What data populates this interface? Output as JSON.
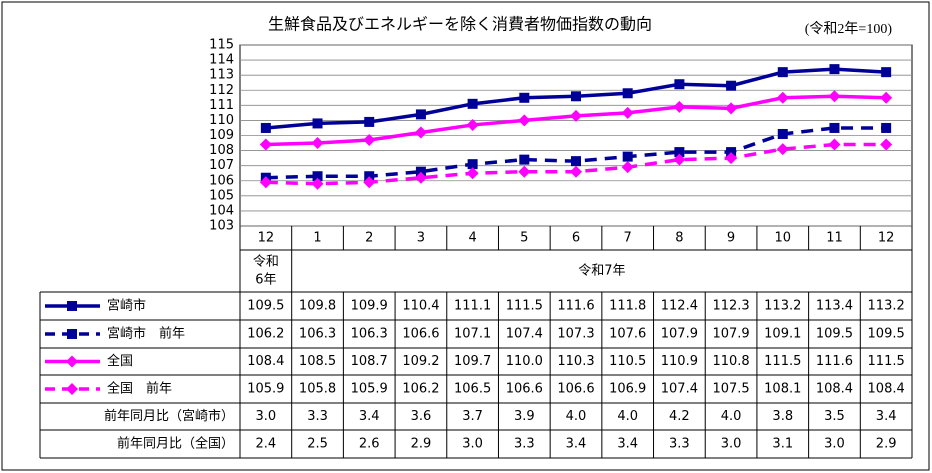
{
  "chart_data": {
    "type": "line",
    "title": "生鮮食品及びエネルギーを除く消費者物価指数の動向",
    "subtitle": "(令和2年=100)",
    "categories": [
      "12",
      "1",
      "2",
      "3",
      "4",
      "5",
      "6",
      "7",
      "8",
      "9",
      "10",
      "11",
      "12"
    ],
    "era_labels": [
      [
        "令和",
        "6年"
      ],
      [
        "令和7年"
      ]
    ],
    "ylim": [
      103,
      115
    ],
    "yticks": [
      103,
      104,
      105,
      106,
      107,
      108,
      109,
      110,
      111,
      112,
      113,
      114,
      115
    ],
    "grid": true,
    "series": [
      {
        "name": "宮崎市",
        "color": "#000099",
        "dashed": false,
        "marker": "square",
        "values": [
          109.5,
          109.8,
          109.9,
          110.4,
          111.1,
          111.5,
          111.6,
          111.8,
          112.4,
          112.3,
          113.2,
          113.4,
          113.2
        ],
        "value_labels": [
          "109.5",
          "109.8",
          "109.9",
          "110.4",
          "111.1",
          "111.5",
          "111.6",
          "111.8",
          "112.4",
          "112.3",
          "113.2",
          "113.4",
          "113.2"
        ]
      },
      {
        "name": "宮崎市　前年",
        "color": "#000099",
        "dashed": true,
        "marker": "square",
        "values": [
          106.2,
          106.3,
          106.3,
          106.6,
          107.1,
          107.4,
          107.3,
          107.6,
          107.9,
          107.9,
          109.1,
          109.5,
          109.5
        ],
        "value_labels": [
          "106.2",
          "106.3",
          "106.3",
          "106.6",
          "107.1",
          "107.4",
          "107.3",
          "107.6",
          "107.9",
          "107.9",
          "109.1",
          "109.5",
          "109.5"
        ]
      },
      {
        "name": "全国",
        "color": "#FF00FF",
        "dashed": false,
        "marker": "diamond",
        "values": [
          108.4,
          108.5,
          108.7,
          109.2,
          109.7,
          110.0,
          110.3,
          110.5,
          110.9,
          110.8,
          111.5,
          111.6,
          111.5
        ],
        "value_labels": [
          "108.4",
          "108.5",
          "108.7",
          "109.2",
          "109.7",
          "110.0",
          "110.3",
          "110.5",
          "110.9",
          "110.8",
          "111.5",
          "111.6",
          "111.5"
        ]
      },
      {
        "name": "全国　前年",
        "color": "#FF00FF",
        "dashed": true,
        "marker": "diamond",
        "values": [
          105.9,
          105.8,
          105.9,
          106.2,
          106.5,
          106.6,
          106.6,
          106.9,
          107.4,
          107.5,
          108.1,
          108.4,
          108.4
        ],
        "value_labels": [
          "105.9",
          "105.8",
          "105.9",
          "106.2",
          "106.5",
          "106.6",
          "106.6",
          "106.9",
          "107.4",
          "107.5",
          "108.1",
          "108.4",
          "108.4"
        ]
      }
    ],
    "table_rows": [
      {
        "name": "前年同月比（宮崎市）",
        "values": [
          3.0,
          3.3,
          3.4,
          3.6,
          3.7,
          3.9,
          4.0,
          4.0,
          4.2,
          4.0,
          3.8,
          3.5,
          3.4
        ],
        "value_labels": [
          "3.0",
          "3.3",
          "3.4",
          "3.6",
          "3.7",
          "3.9",
          "4.0",
          "4.0",
          "4.2",
          "4.0",
          "3.8",
          "3.5",
          "3.4"
        ]
      },
      {
        "name": "前年同月比（全国）",
        "values": [
          2.4,
          2.5,
          2.6,
          2.9,
          3.0,
          3.3,
          3.4,
          3.4,
          3.3,
          3.0,
          3.1,
          3.0,
          2.9
        ],
        "value_labels": [
          "2.4",
          "2.5",
          "2.6",
          "2.9",
          "3.0",
          "3.3",
          "3.4",
          "3.4",
          "3.3",
          "3.0",
          "3.1",
          "3.0",
          "2.9"
        ]
      }
    ]
  }
}
